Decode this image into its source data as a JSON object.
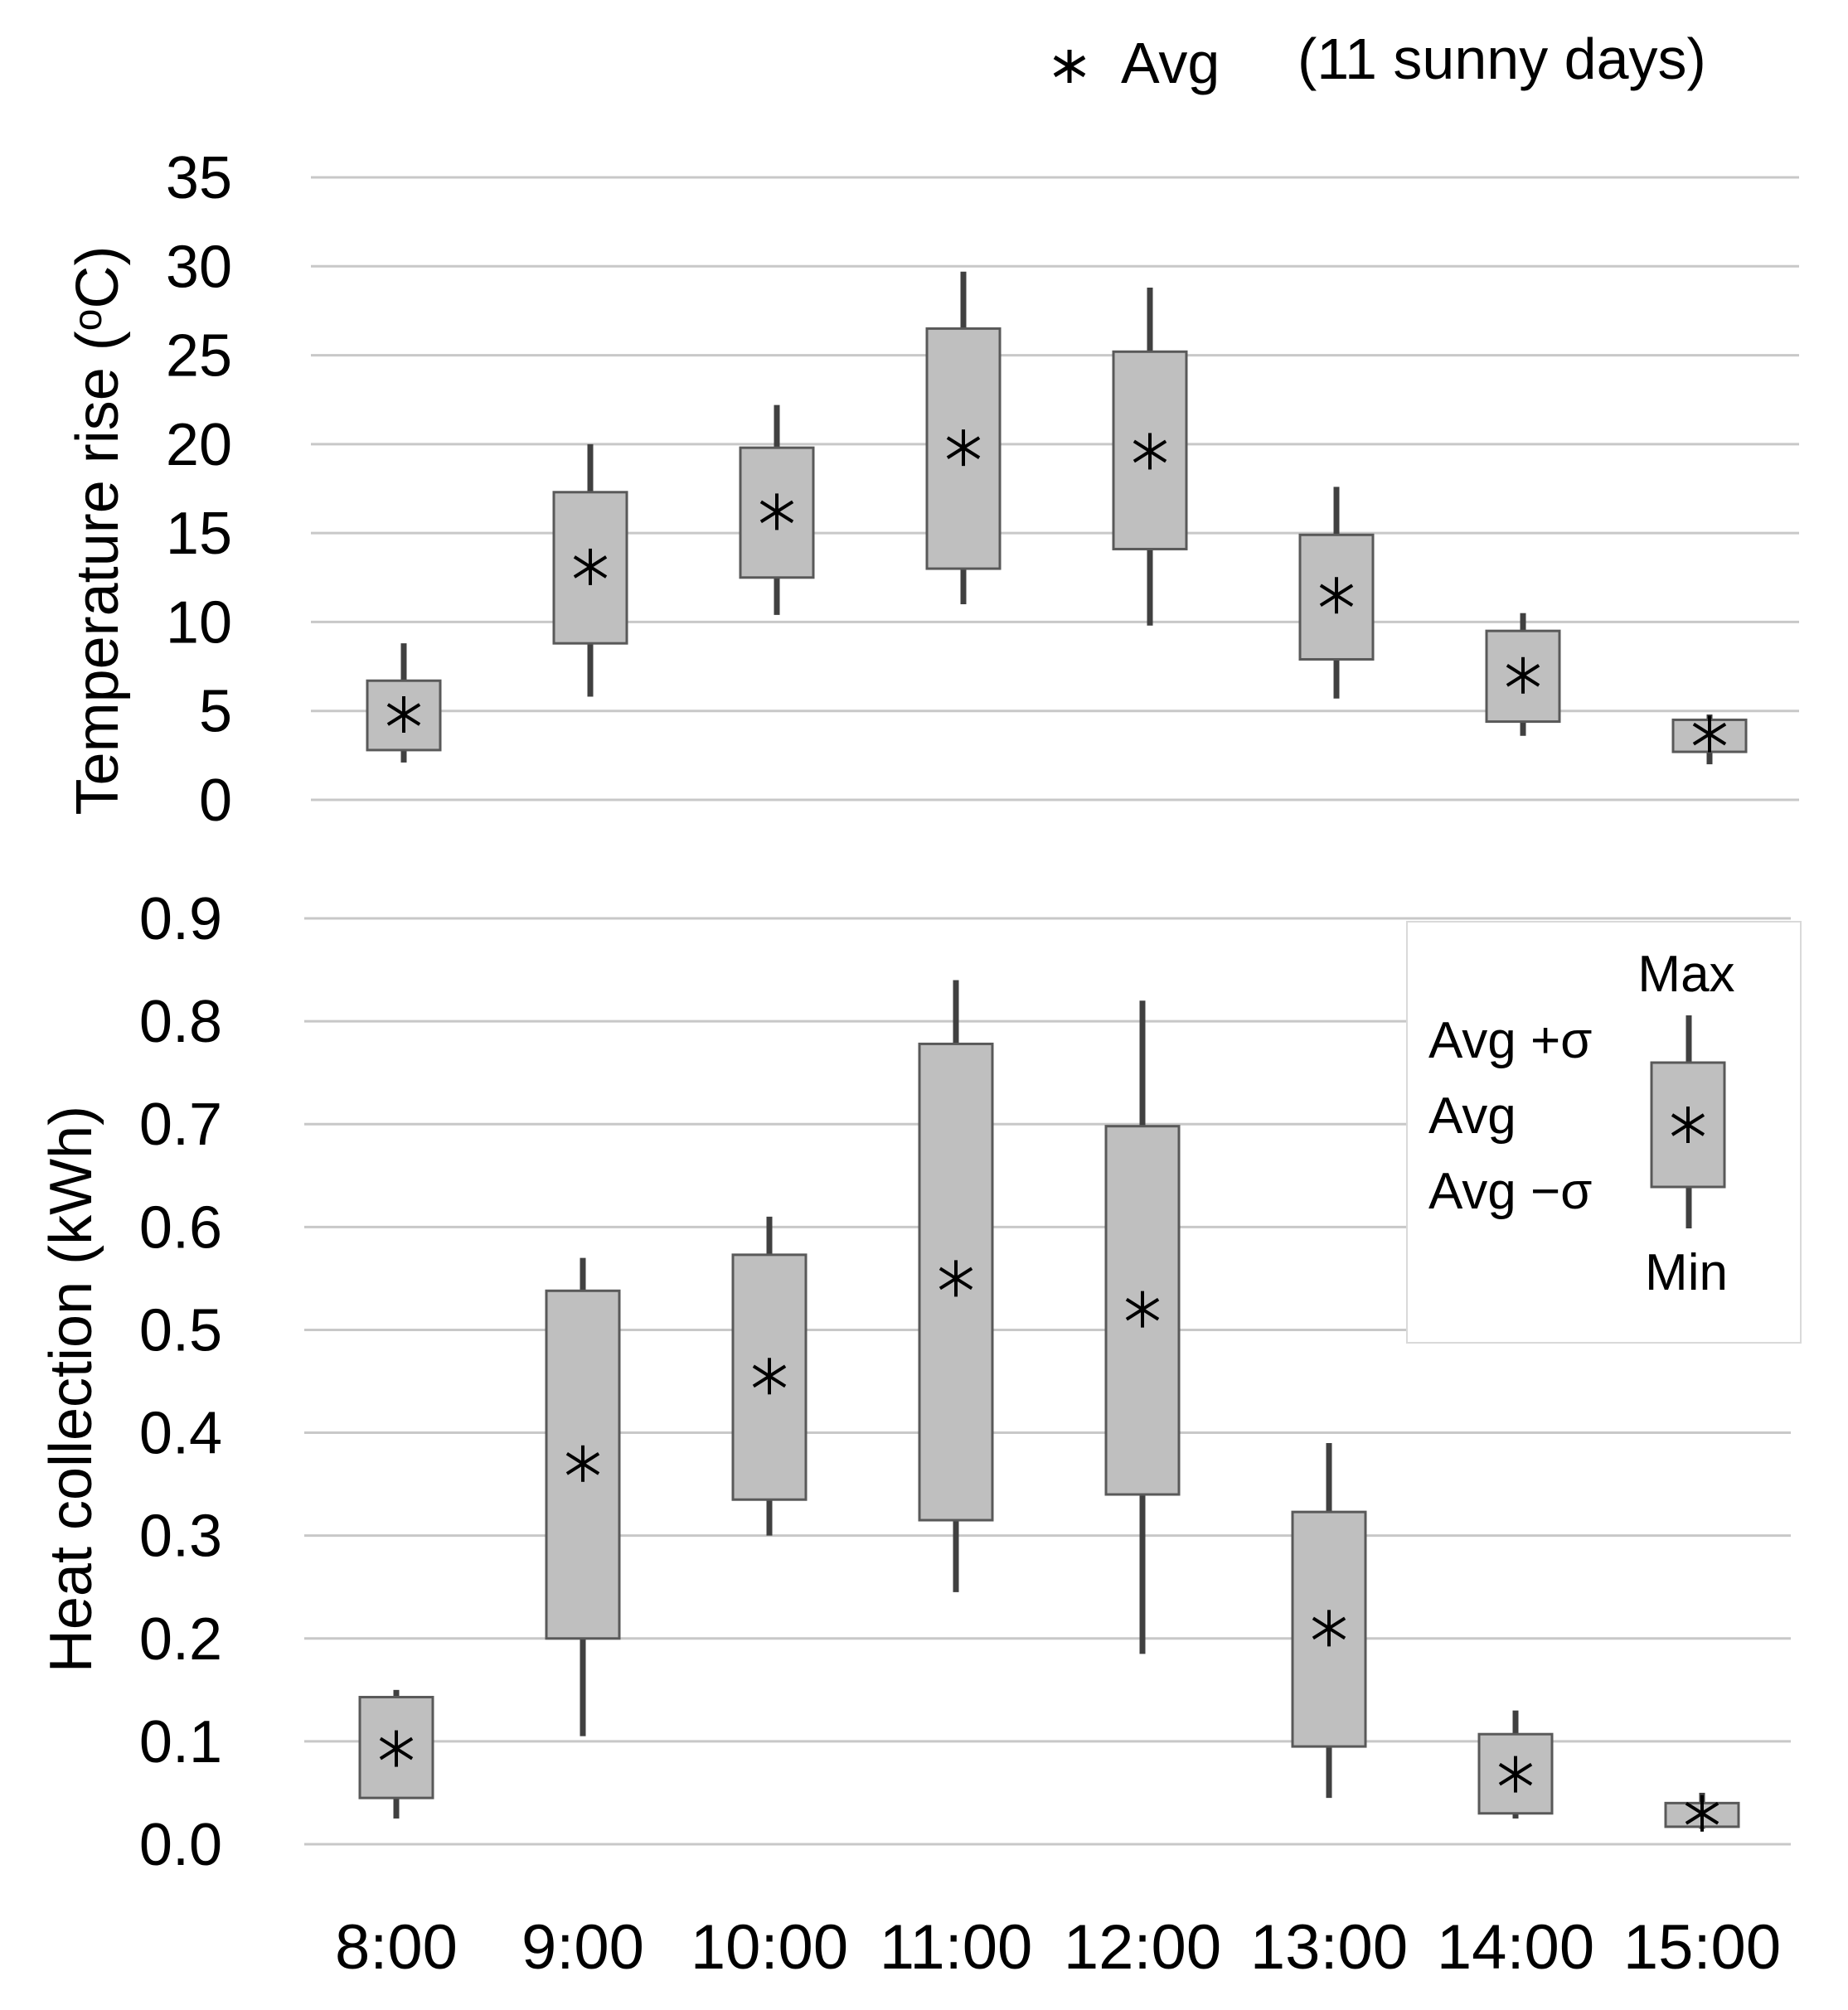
{
  "header": {
    "legend_symbol_label": "Avg",
    "subtitle": "(11 sunny days)"
  },
  "chart_data": [
    {
      "type": "box",
      "ylabel": "Temperature rise (℃)",
      "ylabel_parts": {
        "prefix": "Temperature rise (",
        "degree": "o",
        "suffix": "C)"
      },
      "ylim": [
        0,
        35
      ],
      "yticks": [
        "0",
        "5",
        "10",
        "15",
        "20",
        "25",
        "30",
        "35"
      ],
      "ytick_values": [
        0,
        5,
        10,
        15,
        20,
        25,
        30,
        35
      ],
      "grid": true,
      "categories": [
        "8:00",
        "9:00",
        "10:00",
        "11:00",
        "12:00",
        "13:00",
        "14:00",
        "15:00"
      ],
      "series": [
        {
          "name": "Min",
          "values": [
            2.1,
            5.8,
            10.4,
            11.0,
            9.8,
            5.7,
            3.6,
            2.0
          ]
        },
        {
          "name": "Avg -σ",
          "values": [
            2.8,
            8.8,
            12.5,
            13.0,
            14.1,
            7.9,
            4.4,
            2.7
          ]
        },
        {
          "name": "Avg",
          "values": [
            4.8,
            13.1,
            16.2,
            19.8,
            19.6,
            11.5,
            7.0,
            3.7
          ]
        },
        {
          "name": "Avg +σ",
          "values": [
            6.7,
            17.3,
            19.8,
            26.5,
            25.2,
            14.9,
            9.5,
            4.5
          ]
        },
        {
          "name": "Max",
          "values": [
            8.8,
            20.0,
            22.2,
            29.7,
            28.8,
            17.6,
            10.5,
            4.8
          ]
        }
      ]
    },
    {
      "type": "box",
      "ylabel": "Heat collection (kWh)",
      "ylim": [
        0,
        0.9
      ],
      "yticks": [
        "0.0",
        "0.1",
        "0.2",
        "0.3",
        "0.4",
        "0.5",
        "0.6",
        "0.7",
        "0.8",
        "0.9"
      ],
      "ytick_values": [
        0,
        0.1,
        0.2,
        0.3,
        0.4,
        0.5,
        0.6,
        0.7,
        0.8,
        0.9
      ],
      "grid": true,
      "xlabel": "",
      "categories": [
        "8:00",
        "9:00",
        "10:00",
        "11:00",
        "12:00",
        "13:00",
        "14:00",
        "15:00"
      ],
      "series": [
        {
          "name": "Min",
          "values": [
            0.025,
            0.105,
            0.3,
            0.245,
            0.185,
            0.045,
            0.025,
            0.015
          ]
        },
        {
          "name": "Avg -σ",
          "values": [
            0.045,
            0.2,
            0.335,
            0.315,
            0.34,
            0.095,
            0.03,
            0.017
          ]
        },
        {
          "name": "Avg",
          "values": [
            0.093,
            0.37,
            0.455,
            0.55,
            0.52,
            0.21,
            0.068,
            0.03
          ]
        },
        {
          "name": "Avg +σ",
          "values": [
            0.143,
            0.538,
            0.573,
            0.778,
            0.698,
            0.323,
            0.107,
            0.04
          ]
        },
        {
          "name": "Max",
          "values": [
            0.15,
            0.57,
            0.61,
            0.84,
            0.82,
            0.39,
            0.13,
            0.05
          ]
        }
      ],
      "legend": {
        "position": "top-right",
        "max": "Max",
        "avg_plus": "Avg +σ",
        "avg": "Avg",
        "avg_minus": "Avg −σ",
        "min": "Min"
      }
    }
  ],
  "colors": {
    "box_fill": "#bfbfbf",
    "box_stroke": "#595959",
    "whisker": "#404040",
    "grid": "#c8c8c8",
    "marker": "#000000"
  }
}
